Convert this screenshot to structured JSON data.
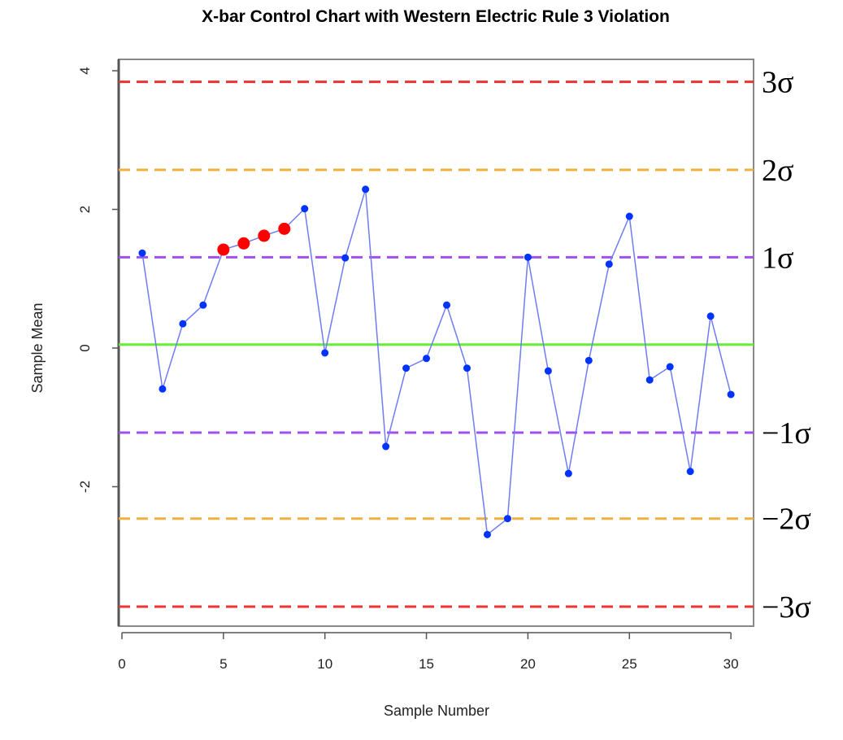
{
  "chart_data": {
    "type": "line",
    "title": "X-bar Control Chart with Western Electric Rule 3 Violation",
    "xlabel": "Sample Number",
    "ylabel": "Sample Mean",
    "xlim": [
      -0.1,
      31.1
    ],
    "ylim": [
      -4.0,
      4.2
    ],
    "x_ticks": [
      0,
      5,
      10,
      15,
      20,
      25,
      30
    ],
    "y_ticks": [
      -2,
      0,
      2,
      4
    ],
    "grid": false,
    "x": [
      1,
      2,
      3,
      4,
      5,
      6,
      7,
      8,
      9,
      10,
      11,
      12,
      13,
      14,
      15,
      16,
      17,
      18,
      19,
      20,
      21,
      22,
      23,
      24,
      25,
      26,
      27,
      28,
      29,
      30
    ],
    "series": [
      {
        "values": [
          1.37,
          -0.59,
          0.35,
          0.62,
          1.42,
          1.51,
          1.62,
          1.72,
          2.01,
          -0.07,
          1.3,
          2.29,
          -1.42,
          -0.29,
          -0.15,
          0.62,
          -0.29,
          -2.69,
          -2.46,
          1.31,
          -0.33,
          -1.81,
          -0.18,
          1.21,
          1.9,
          -0.46,
          -0.27,
          -1.78,
          0.46,
          -0.67
        ],
        "color": "#0033ff",
        "line_color": "#6f7cf5"
      }
    ],
    "violation_points": [
      5,
      6,
      7,
      8
    ],
    "violation_color": "#ff0000",
    "reference_lines": [
      {
        "label": "3σ",
        "value": 3.84,
        "color": "#ee3333",
        "style": "dashed"
      },
      {
        "label": "2σ",
        "value": 2.57,
        "color": "#f0b040",
        "style": "dashed"
      },
      {
        "label": "1σ",
        "value": 1.31,
        "color": "#a050f0",
        "style": "dashed"
      },
      {
        "label": "",
        "value": 0.05,
        "color": "#66ee33",
        "style": "solid"
      },
      {
        "label": "−1σ",
        "value": -1.22,
        "color": "#a050f0",
        "style": "dashed"
      },
      {
        "label": "−2σ",
        "value": -2.46,
        "color": "#f0b040",
        "style": "dashed"
      },
      {
        "label": "−3σ",
        "value": -3.73,
        "color": "#ee3333",
        "style": "dashed"
      }
    ]
  }
}
